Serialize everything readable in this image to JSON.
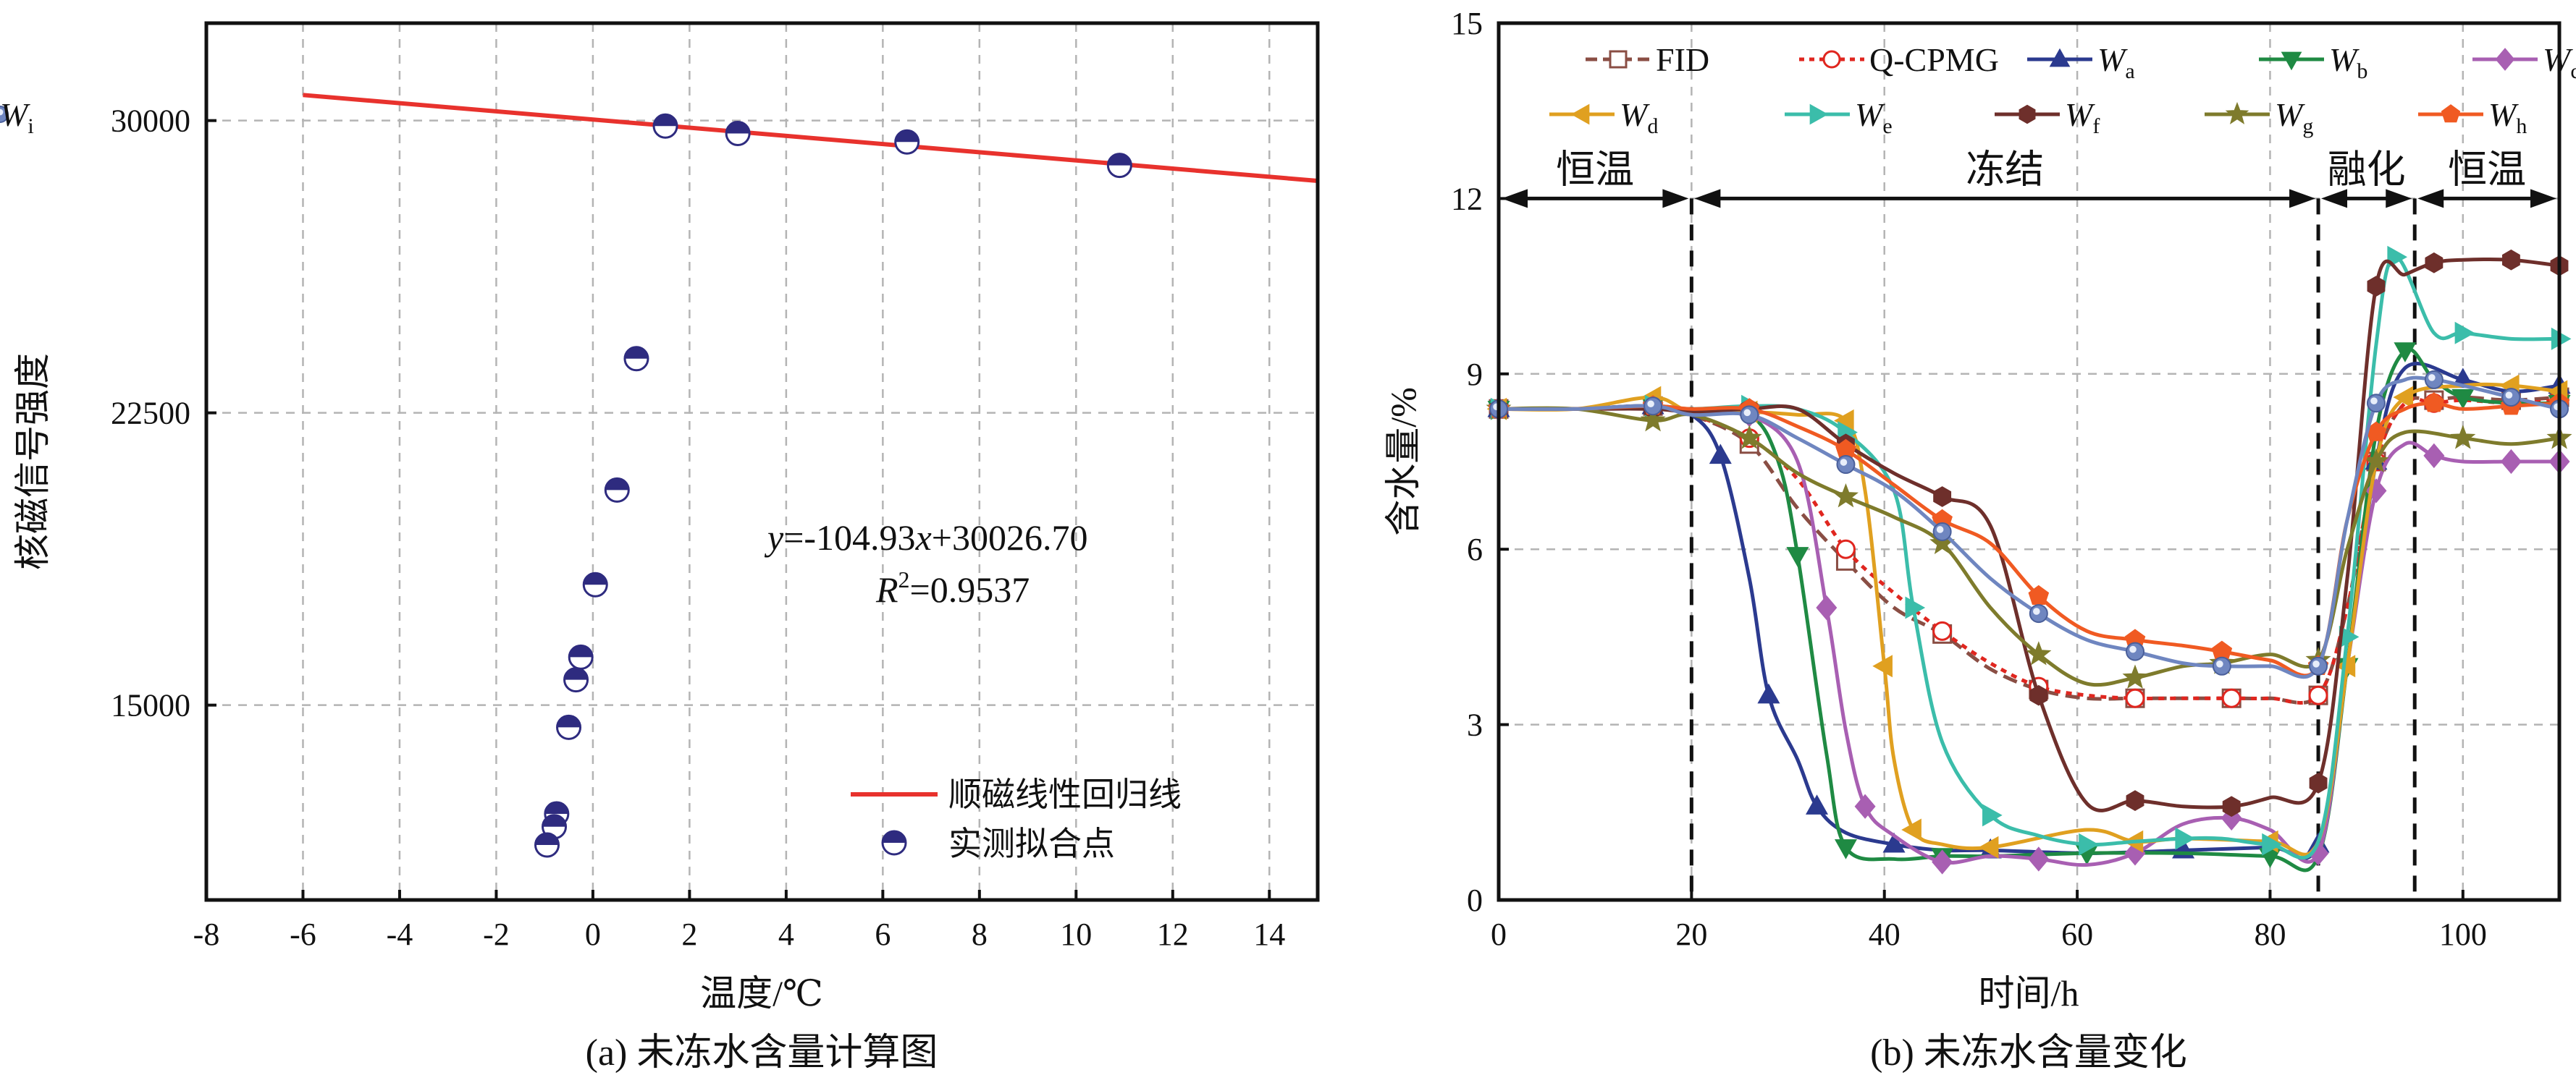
{
  "chart_data": [
    {
      "type": "scatter",
      "panel_caption": "(a) 未冻水含量计算图",
      "xlabel": "温度/℃",
      "ylabel": "核磁信号强度",
      "xlim": [
        -8,
        15
      ],
      "ylim": [
        10000,
        32500
      ],
      "xticks": [
        -8,
        -6,
        -4,
        -2,
        0,
        2,
        4,
        6,
        8,
        10,
        12,
        14
      ],
      "yticks": [
        15000,
        22500,
        30000
      ],
      "grid": true,
      "legend_position": "bottom-right",
      "regression": {
        "name": "顺磁线性回归线",
        "slope": -104.93,
        "intercept": 30026.7,
        "x_range": [
          -6,
          15
        ],
        "color": "#e8322d",
        "equation_prefix": "y",
        "equation_body": "=-104.93",
        "equation_var": "x",
        "equation_rest": "+30026.70",
        "r2_prefix": "R",
        "r2_sup": "2",
        "r2_value": "=0.9537"
      },
      "points_name": "实测拟合点",
      "points_color": "#2e2b7f",
      "points": [
        [
          1.5,
          29860
        ],
        [
          3.0,
          29670
        ],
        [
          6.5,
          29450
        ],
        [
          10.9,
          28850
        ],
        [
          0.9,
          23890
        ],
        [
          0.5,
          20520
        ],
        [
          0.05,
          18090
        ],
        [
          -0.25,
          16230
        ],
        [
          -0.35,
          15650
        ],
        [
          -0.5,
          14430
        ],
        [
          -0.75,
          12210
        ],
        [
          -0.8,
          11880
        ],
        [
          -0.95,
          11410
        ]
      ]
    },
    {
      "type": "line",
      "panel_caption": "(b) 未冻水含量变化",
      "xlabel": "时间/h",
      "ylabel": "含水量/%",
      "xlim": [
        0,
        110
      ],
      "ylim": [
        0,
        15
      ],
      "xticks": [
        0,
        20,
        40,
        60,
        80,
        100
      ],
      "yticks": [
        0,
        3,
        6,
        9,
        12,
        15
      ],
      "grid": true,
      "legend_position": "top",
      "phase_lines": [
        20,
        85,
        95
      ],
      "phases": [
        {
          "label": "恒温",
          "from": 0,
          "to": 20
        },
        {
          "label": "冻结",
          "from": 20,
          "to": 85
        },
        {
          "label": "融化",
          "from": 85,
          "to": 95
        },
        {
          "label": "恒温",
          "from": 95,
          "to": 110
        }
      ],
      "series": [
        {
          "name": "FID",
          "legend_main": "FID",
          "legend_sub": "",
          "color": "#8a4e44",
          "marker": "square-open",
          "dash": "dash",
          "x": [
            0,
            8,
            16,
            20,
            26,
            31,
            36,
            41,
            46,
            51,
            56,
            61,
            66,
            71,
            76,
            80,
            85,
            88,
            91,
            94,
            97,
            100,
            105,
            110
          ],
          "y": [
            8.4,
            8.4,
            8.45,
            8.3,
            7.8,
            6.7,
            5.8,
            5.0,
            4.55,
            3.95,
            3.6,
            3.45,
            3.45,
            3.45,
            3.45,
            3.45,
            3.5,
            5.0,
            7.5,
            8.5,
            8.55,
            8.6,
            8.55,
            8.6
          ]
        },
        {
          "name": "Q-CPMG",
          "legend_main": "Q-CPMG",
          "legend_sub": "",
          "color": "#e0261f",
          "marker": "circle-open",
          "dash": "dot",
          "x": [
            0,
            8,
            16,
            20,
            26,
            31,
            36,
            41,
            46,
            51,
            56,
            61,
            66,
            71,
            76,
            80,
            85,
            88,
            91,
            94,
            97,
            100,
            105,
            110
          ],
          "y": [
            8.4,
            8.4,
            8.45,
            8.3,
            7.9,
            7.2,
            6.0,
            5.25,
            4.6,
            4.05,
            3.65,
            3.5,
            3.45,
            3.45,
            3.45,
            3.45,
            3.5,
            5.0,
            7.5,
            8.5,
            8.5,
            8.55,
            8.5,
            8.55
          ]
        },
        {
          "name": "Wa",
          "legend_main": "W",
          "legend_sub": "a",
          "color": "#2b3a8f",
          "marker": "triangle-up",
          "dash": "solid",
          "x": [
            0,
            8,
            16,
            20,
            23,
            26,
            28,
            31,
            33,
            36,
            41,
            46,
            51,
            61,
            71,
            80,
            85,
            88,
            91,
            94,
            100,
            105,
            110
          ],
          "y": [
            8.4,
            8.4,
            8.45,
            8.3,
            7.6,
            5.5,
            3.5,
            2.4,
            1.6,
            1.15,
            0.95,
            0.85,
            0.85,
            0.8,
            0.85,
            0.9,
            0.95,
            4.0,
            7.5,
            9.1,
            8.9,
            8.7,
            8.8
          ]
        },
        {
          "name": "Wb",
          "legend_main": "W",
          "legend_sub": "b",
          "color": "#1f8a43",
          "marker": "triangle-down",
          "dash": "solid",
          "x": [
            0,
            8,
            16,
            20,
            26,
            29,
            31,
            34,
            36,
            41,
            46,
            51,
            61,
            71,
            80,
            85,
            88,
            91,
            94,
            97,
            100,
            105,
            110
          ],
          "y": [
            8.4,
            8.4,
            8.45,
            8.35,
            8.3,
            7.5,
            5.9,
            2.5,
            0.9,
            0.7,
            0.75,
            0.75,
            0.8,
            0.8,
            0.75,
            0.75,
            4.0,
            8.0,
            9.4,
            8.9,
            8.6,
            8.5,
            8.5
          ]
        },
        {
          "name": "Wc",
          "legend_main": "W",
          "legend_sub": "c",
          "color": "#a85fb2",
          "marker": "diamond",
          "dash": "solid",
          "x": [
            0,
            8,
            16,
            20,
            26,
            31,
            34,
            36,
            38,
            41,
            46,
            51,
            56,
            61,
            66,
            71,
            76,
            80,
            85,
            88,
            91,
            94,
            97,
            100,
            105,
            110
          ],
          "y": [
            8.4,
            8.4,
            8.4,
            8.35,
            8.3,
            7.5,
            5.0,
            2.9,
            1.6,
            1.1,
            0.65,
            0.75,
            0.7,
            0.6,
            0.8,
            1.3,
            1.4,
            1.2,
            0.8,
            4.0,
            7.0,
            7.8,
            7.6,
            7.5,
            7.5,
            7.5
          ]
        },
        {
          "name": "Wd",
          "legend_main": "W",
          "legend_sub": "d",
          "color": "#e0a020",
          "marker": "triangle-left",
          "dash": "solid",
          "x": [
            0,
            8,
            16,
            20,
            26,
            31,
            36,
            38,
            40,
            41,
            43,
            46,
            51,
            61,
            66,
            71,
            80,
            85,
            88,
            91,
            94,
            100,
            105,
            110
          ],
          "y": [
            8.4,
            8.4,
            8.6,
            8.35,
            8.35,
            8.3,
            8.2,
            7.0,
            4.0,
            2.4,
            1.2,
            0.95,
            0.9,
            1.2,
            1.0,
            1.05,
            1.0,
            1.0,
            4.0,
            7.5,
            8.6,
            8.8,
            8.8,
            8.7
          ]
        },
        {
          "name": "We",
          "legend_main": "W",
          "legend_sub": "e",
          "color": "#3bbdaa",
          "marker": "triangle-right",
          "dash": "solid",
          "x": [
            0,
            8,
            16,
            20,
            26,
            31,
            36,
            41,
            43,
            46,
            51,
            56,
            61,
            66,
            71,
            75,
            80,
            85,
            88,
            91,
            93,
            97,
            100,
            105,
            110
          ],
          "y": [
            8.4,
            8.4,
            8.45,
            8.4,
            8.45,
            8.4,
            8.0,
            7.0,
            5.0,
            2.7,
            1.45,
            1.1,
            0.95,
            1.0,
            1.05,
            1.05,
            0.95,
            1.0,
            4.5,
            9.5,
            11.0,
            9.7,
            9.7,
            9.6,
            9.6
          ]
        },
        {
          "name": "Wf",
          "legend_main": "W",
          "legend_sub": "f",
          "color": "#6e2f2b",
          "marker": "hexagon",
          "dash": "solid",
          "x": [
            0,
            8,
            16,
            20,
            26,
            31,
            36,
            41,
            46,
            51,
            56,
            61,
            66,
            71,
            76,
            80,
            85,
            88,
            91,
            94,
            97,
            100,
            105,
            110
          ],
          "y": [
            8.4,
            8.4,
            8.4,
            8.35,
            8.4,
            8.4,
            7.8,
            7.3,
            6.9,
            6.4,
            3.5,
            1.65,
            1.7,
            1.6,
            1.6,
            1.75,
            2.0,
            5.5,
            10.5,
            10.7,
            10.9,
            10.95,
            10.95,
            10.85
          ]
        },
        {
          "name": "Wg",
          "legend_main": "W",
          "legend_sub": "g",
          "color": "#7e7b2c",
          "marker": "star",
          "dash": "solid",
          "x": [
            0,
            8,
            16,
            20,
            26,
            31,
            36,
            41,
            46,
            51,
            56,
            61,
            66,
            71,
            75,
            80,
            85,
            88,
            91,
            94,
            100,
            105,
            110
          ],
          "y": [
            8.4,
            8.4,
            8.2,
            8.3,
            7.9,
            7.3,
            6.9,
            6.55,
            6.1,
            5.0,
            4.2,
            3.7,
            3.8,
            4.0,
            4.05,
            4.2,
            4.1,
            6.0,
            7.5,
            8.0,
            7.9,
            7.8,
            7.9
          ]
        },
        {
          "name": "Wh",
          "legend_main": "W",
          "legend_sub": "h",
          "color": "#f05a22",
          "marker": "pentagon",
          "dash": "solid",
          "x": [
            0,
            8,
            16,
            20,
            26,
            31,
            36,
            41,
            46,
            51,
            56,
            61,
            66,
            71,
            75,
            80,
            85,
            88,
            91,
            94,
            97,
            100,
            105,
            110
          ],
          "y": [
            8.4,
            8.4,
            8.45,
            8.4,
            8.4,
            8.1,
            7.7,
            7.1,
            6.5,
            6.1,
            5.2,
            4.6,
            4.45,
            4.35,
            4.25,
            4.1,
            4.0,
            6.5,
            8.0,
            8.4,
            8.5,
            8.4,
            8.45,
            8.5
          ]
        },
        {
          "name": "Wi",
          "legend_main": "W",
          "legend_sub": "i",
          "color": "#6f86c0",
          "marker": "circle-dot",
          "dash": "solid",
          "x": [
            0,
            8,
            16,
            20,
            26,
            31,
            36,
            41,
            46,
            51,
            56,
            61,
            66,
            71,
            75,
            80,
            85,
            88,
            91,
            94,
            97,
            100,
            105,
            110
          ],
          "y": [
            8.4,
            8.4,
            8.45,
            8.3,
            8.3,
            7.9,
            7.45,
            7.0,
            6.3,
            5.5,
            4.9,
            4.45,
            4.25,
            4.05,
            4.0,
            4.0,
            4.0,
            6.5,
            8.5,
            8.9,
            8.9,
            8.8,
            8.6,
            8.4
          ]
        }
      ]
    }
  ]
}
